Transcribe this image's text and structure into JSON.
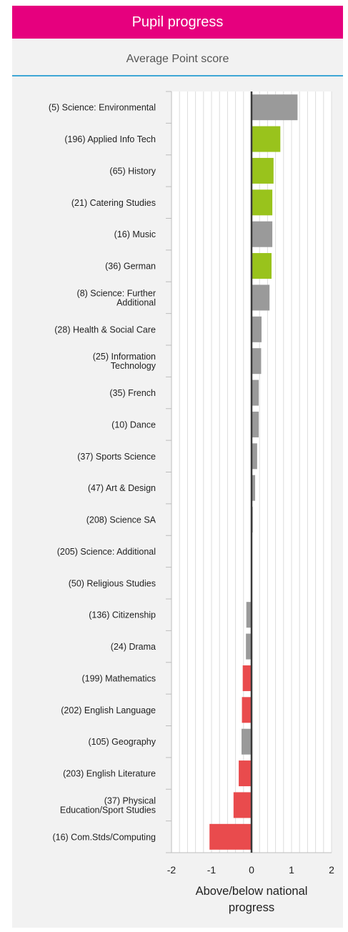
{
  "header": {
    "title": "Pupil progress",
    "subtitle": "Average Point score"
  },
  "colors": {
    "header_bg": "#e6007e",
    "accent_rule": "#3fa7d6",
    "above": "#99c31c",
    "below": "#e94b4d",
    "neutral": "#9a9a9a"
  },
  "chart_data": {
    "type": "bar",
    "orientation": "horizontal",
    "title": "Average Point score",
    "xlabel": "Above/below national progress",
    "xlim": [
      -2,
      2
    ],
    "xticks": [
      "-2",
      "-1",
      "0",
      "1",
      "2"
    ],
    "grid": true,
    "categories": [
      "(5) Science: Environmental",
      "(196) Applied Info Tech",
      "(65) History",
      "(21) Catering Studies",
      "(16) Music",
      "(36) German",
      "(8) Science: Further\nAdditional",
      "(28) Health & Social Care",
      "(25) Information\nTechnology",
      "(35) French",
      "(10) Dance",
      "(37) Sports Science",
      "(47) Art & Design",
      "(208) Science SA",
      "(205) Science: Additional",
      "(50) Religious Studies",
      "(136) Citizenship",
      "(24) Drama",
      "(199) Mathematics",
      "(202) English Language",
      "(105) Geography",
      "(203) English Literature",
      "(37) Physical\nEducation/Sport Studies",
      "(16) Com.Stds/Computing"
    ],
    "values": [
      1.15,
      0.72,
      0.55,
      0.52,
      0.52,
      0.5,
      0.45,
      0.25,
      0.24,
      0.18,
      0.18,
      0.14,
      0.09,
      0.03,
      0.0,
      0.0,
      -0.13,
      -0.14,
      -0.22,
      -0.24,
      -0.25,
      -0.32,
      -0.45,
      -1.05
    ],
    "status": [
      "neutral",
      "above",
      "above",
      "above",
      "neutral",
      "above",
      "neutral",
      "neutral",
      "neutral",
      "neutral",
      "neutral",
      "neutral",
      "neutral",
      "neutral",
      "neutral",
      "neutral",
      "neutral",
      "neutral",
      "below",
      "below",
      "neutral",
      "below",
      "below",
      "below"
    ]
  }
}
